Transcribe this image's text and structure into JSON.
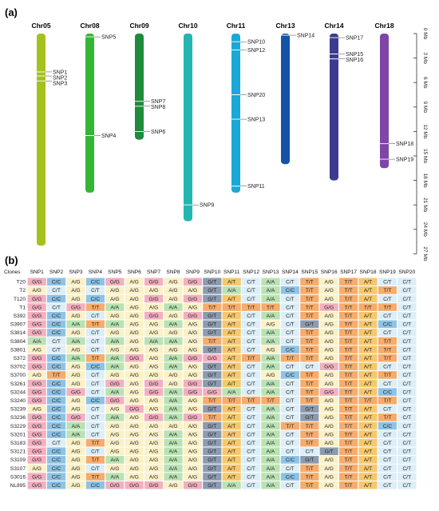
{
  "panel_a": {
    "label": "(a)",
    "scale_ticks": [
      "0 Mb",
      "3 Mb",
      "6 Mb",
      "9 Mb",
      "12 Mb",
      "15 Mb",
      "18 Mb",
      "21 Mb",
      "24 Mb",
      "27 Mb"
    ],
    "chromosomes": [
      {
        "name": "Chr05",
        "length_mb": 26.0,
        "color": "#a3c21c",
        "snps": [
          {
            "label": "SNP1",
            "pos_mb": 4.7
          },
          {
            "label": "SNP2",
            "pos_mb": 5.2
          },
          {
            "label": "SNP3",
            "pos_mb": 5.8
          }
        ]
      },
      {
        "name": "Chr08",
        "length_mb": 19.5,
        "color": "#35b535",
        "snps": [
          {
            "label": "SNP5",
            "pos_mb": 0.4
          },
          {
            "label": "SNP4",
            "pos_mb": 12.5
          }
        ]
      },
      {
        "name": "Chr09",
        "length_mb": 13.0,
        "color": "#1e8c3a",
        "snps": [
          {
            "label": "SNP7",
            "pos_mb": 8.3
          },
          {
            "label": "SNP8",
            "pos_mb": 8.9
          },
          {
            "label": "SNP6",
            "pos_mb": 12.0
          }
        ]
      },
      {
        "name": "Chr10",
        "length_mb": 23.0,
        "color": "#25b5b0",
        "snps": [
          {
            "label": "SNP9",
            "pos_mb": 21.0
          }
        ]
      },
      {
        "name": "Chr11",
        "length_mb": 19.5,
        "color": "#1aa8d6",
        "snps": [
          {
            "label": "SNP10",
            "pos_mb": 1.0
          },
          {
            "label": "SNP12",
            "pos_mb": 2.0
          },
          {
            "label": "SNP20",
            "pos_mb": 7.5
          },
          {
            "label": "SNP13",
            "pos_mb": 10.5
          },
          {
            "label": "SNP11",
            "pos_mb": 18.7
          }
        ]
      },
      {
        "name": "Chr13",
        "length_mb": 16.0,
        "color": "#1553a8",
        "snps": [
          {
            "label": "SNP14",
            "pos_mb": 0.2
          }
        ]
      },
      {
        "name": "Chr14",
        "length_mb": 18.0,
        "color": "#3b3b8f",
        "snps": [
          {
            "label": "SNP17",
            "pos_mb": 0.5
          },
          {
            "label": "SNP15",
            "pos_mb": 2.5
          },
          {
            "label": "SNP16",
            "pos_mb": 3.1
          }
        ]
      },
      {
        "name": "Chr18",
        "length_mb": 16.5,
        "color": "#7f45a8",
        "snps": [
          {
            "label": "SNP18",
            "pos_mb": 13.5
          },
          {
            "label": "SNP19",
            "pos_mb": 15.4
          }
        ]
      }
    ]
  },
  "panel_b": {
    "label": "(b)",
    "corner": "Clones",
    "columns": [
      "SNP1",
      "SNP2",
      "SNP3",
      "SNP4",
      "SNP5",
      "SNP6",
      "SNP7",
      "SNP8",
      "SNP9",
      "SNP10",
      "SNP11",
      "SNP12",
      "SNP13",
      "SNP14",
      "SNP15",
      "SNP16",
      "SNP17",
      "SNP18",
      "SNP19",
      "SNP20"
    ],
    "genotype_colors": {
      "G/G": "#f3b0c0",
      "C/C": "#8ec3e6",
      "A/G": "#fbf1c7",
      "C/T": "#dceef8",
      "T/T": "#f6ac6c",
      "A/A": "#b9e3b2",
      "G/T": "#8d9bb0",
      "A/T": "#f6c86d",
      "C/G": "#9bb2c9"
    },
    "rows": [
      {
        "clone": "T20",
        "genotypes": [
          "G/G",
          "C/C",
          "A/G",
          "C/C",
          "G/G",
          "A/G",
          "G/G",
          "A/G",
          "G/G",
          "G/T",
          "A/T",
          "C/T",
          "A/A",
          "C/T",
          "T/T",
          "A/G",
          "T/T",
          "A/T",
          "C/T",
          "C/T"
        ]
      },
      {
        "clone": "T2",
        "genotypes": [
          "A/G",
          "C/T",
          "A/G",
          "C/T",
          "A/G",
          "A/G",
          "A/G",
          "A/G",
          "A/G",
          "G/T",
          "A/A",
          "C/T",
          "A/A",
          "C/C",
          "T/T",
          "A/G",
          "T/T",
          "A/T",
          "T/T",
          "C/T"
        ]
      },
      {
        "clone": "T120",
        "genotypes": [
          "G/G",
          "C/C",
          "A/G",
          "C/C",
          "A/G",
          "A/G",
          "G/G",
          "A/G",
          "G/G",
          "G/T",
          "A/T",
          "C/T",
          "A/A",
          "C/T",
          "T/T",
          "A/G",
          "T/T",
          "A/T",
          "C/T",
          "C/T"
        ]
      },
      {
        "clone": "T1",
        "genotypes": [
          "G/G",
          "C/T",
          "G/G",
          "T/T",
          "A/A",
          "A/G",
          "A/G",
          "A/A",
          "A/G",
          "T/T",
          "T/T",
          "T/T",
          "T/T",
          "C/T",
          "T/T",
          "G/G",
          "T/T",
          "T/T",
          "T/T",
          "C/T"
        ]
      },
      {
        "clone": "S392",
        "genotypes": [
          "G/G",
          "C/C",
          "A/G",
          "C/T",
          "A/G",
          "A/G",
          "G/G",
          "A/G",
          "G/G",
          "G/T",
          "A/T",
          "C/T",
          "A/A",
          "C/T",
          "T/T",
          "A/G",
          "T/T",
          "A/T",
          "C/T",
          "C/T"
        ]
      },
      {
        "clone": "S3907",
        "genotypes": [
          "G/G",
          "C/C",
          "A/A",
          "T/T",
          "A/A",
          "A/G",
          "A/G",
          "A/A",
          "A/G",
          "G/T",
          "A/T",
          "C/T",
          "A/G",
          "C/T",
          "G/T",
          "A/G",
          "T/T",
          "A/T",
          "C/C",
          "C/T"
        ]
      },
      {
        "clone": "S3814",
        "genotypes": [
          "G/G",
          "C/C",
          "A/G",
          "C/T",
          "A/G",
          "A/G",
          "A/G",
          "A/G",
          "A/G",
          "G/T",
          "A/T",
          "C/T",
          "A/A",
          "C/T",
          "T/T",
          "A/G",
          "T/T",
          "A/T",
          "C/T",
          "C/T"
        ]
      },
      {
        "clone": "S3804",
        "genotypes": [
          "A/A",
          "C/T",
          "A/A",
          "C/T",
          "A/A",
          "A/G",
          "A/A",
          "A/A",
          "A/G",
          "T/T",
          "A/T",
          "C/T",
          "A/A",
          "C/T",
          "T/T",
          "A/G",
          "T/T",
          "A/T",
          "T/T",
          "C/T"
        ]
      },
      {
        "clone": "S3801",
        "genotypes": [
          "A/G",
          "C/T",
          "A/G",
          "C/T",
          "A/G",
          "A/G",
          "A/G",
          "A/G",
          "A/G",
          "G/T",
          "A/T",
          "C/T",
          "A/G",
          "C/C",
          "T/T",
          "A/G",
          "T/T",
          "A/T",
          "T/T",
          "C/T"
        ]
      },
      {
        "clone": "S372",
        "genotypes": [
          "G/G",
          "C/C",
          "A/A",
          "T/T",
          "A/A",
          "G/G",
          "A/G",
          "A/A",
          "G/G",
          "G/G",
          "A/T",
          "T/T",
          "A/A",
          "T/T",
          "T/T",
          "A/G",
          "T/T",
          "A/T",
          "T/T",
          "C/T"
        ]
      },
      {
        "clone": "S3702",
        "genotypes": [
          "G/G",
          "C/C",
          "A/G",
          "C/C",
          "A/A",
          "A/G",
          "A/G",
          "A/A",
          "A/G",
          "G/T",
          "A/T",
          "C/T",
          "A/A",
          "C/T",
          "C/T",
          "G/G",
          "T/T",
          "A/T",
          "C/T",
          "C/T"
        ]
      },
      {
        "clone": "S3700",
        "genotypes": [
          "A/G",
          "T/T",
          "A/G",
          "C/T",
          "A/G",
          "A/G",
          "A/G",
          "A/G",
          "A/G",
          "G/T",
          "A/T",
          "C/T",
          "A/G",
          "C/C",
          "T/T",
          "A/G",
          "T/T",
          "A/T",
          "T/T",
          "C/T"
        ]
      },
      {
        "clone": "S3261",
        "genotypes": [
          "G/G",
          "C/C",
          "A/G",
          "C/T",
          "G/G",
          "A/G",
          "G/G",
          "A/G",
          "G/G",
          "G/T",
          "A/T",
          "C/T",
          "A/A",
          "C/T",
          "T/T",
          "A/G",
          "T/T",
          "A/T",
          "C/T",
          "C/T"
        ]
      },
      {
        "clone": "S3244",
        "genotypes": [
          "G/G",
          "C/C",
          "G/G",
          "C/T",
          "A/A",
          "A/G",
          "G/G",
          "A/A",
          "G/G",
          "G/G",
          "A/A",
          "C/T",
          "A/A",
          "C/T",
          "T/T",
          "G/G",
          "T/T",
          "A/T",
          "C/C",
          "C/T"
        ]
      },
      {
        "clone": "S3240",
        "genotypes": [
          "G/G",
          "C/C",
          "A/G",
          "C/C",
          "G/G",
          "A/G",
          "A/G",
          "A/A",
          "A/G",
          "T/T",
          "T/T",
          "T/T",
          "T/T",
          "C/T",
          "T/T",
          "A/G",
          "T/T",
          "T/T",
          "T/T",
          "C/T"
        ]
      },
      {
        "clone": "S3239",
        "genotypes": [
          "A/G",
          "C/C",
          "A/G",
          "C/T",
          "A/G",
          "G/G",
          "A/G",
          "A/A",
          "A/G",
          "G/T",
          "A/T",
          "C/T",
          "A/A",
          "C/T",
          "G/T",
          "A/G",
          "T/T",
          "A/T",
          "C/T",
          "C/T"
        ]
      },
      {
        "clone": "S3236",
        "genotypes": [
          "G/G",
          "C/C",
          "G/G",
          "C/T",
          "A/A",
          "A/G",
          "G/G",
          "A/A",
          "G/G",
          "T/T",
          "A/T",
          "C/T",
          "A/A",
          "C/T",
          "G/T",
          "A/G",
          "T/T",
          "A/T",
          "T/T",
          "C/T"
        ]
      },
      {
        "clone": "S3229",
        "genotypes": [
          "G/G",
          "C/C",
          "A/A",
          "C/T",
          "A/G",
          "A/G",
          "A/G",
          "A/G",
          "A/G",
          "G/T",
          "A/T",
          "C/T",
          "A/A",
          "T/T",
          "T/T",
          "A/G",
          "T/T",
          "A/T",
          "C/C",
          "C/T"
        ]
      },
      {
        "clone": "S3201",
        "genotypes": [
          "G/G",
          "C/C",
          "A/A",
          "C/T",
          "A/G",
          "A/G",
          "A/G",
          "A/A",
          "A/G",
          "G/T",
          "A/T",
          "C/T",
          "A/A",
          "C/T",
          "T/T",
          "A/G",
          "T/T",
          "A/T",
          "C/T",
          "C/T"
        ]
      },
      {
        "clone": "S3183",
        "genotypes": [
          "G/G",
          "C/T",
          "A/G",
          "T/T",
          "A/G",
          "A/G",
          "A/G",
          "A/A",
          "A/G",
          "G/T",
          "A/T",
          "C/T",
          "A/A",
          "C/T",
          "T/T",
          "A/G",
          "T/T",
          "A/T",
          "C/T",
          "C/T"
        ]
      },
      {
        "clone": "S3121",
        "genotypes": [
          "G/G",
          "C/C",
          "A/G",
          "C/T",
          "A/G",
          "A/G",
          "A/G",
          "A/A",
          "A/G",
          "G/T",
          "A/T",
          "C/T",
          "A/A",
          "C/T",
          "C/T",
          "G/T",
          "T/T",
          "A/T",
          "C/T",
          "C/T"
        ]
      },
      {
        "clone": "S3109",
        "genotypes": [
          "G/G",
          "C/C",
          "A/G",
          "T/T",
          "A/A",
          "A/G",
          "A/G",
          "A/A",
          "A/G",
          "G/T",
          "A/T",
          "C/T",
          "A/A",
          "C/C",
          "G/T",
          "A/G",
          "T/T",
          "A/T",
          "C/T",
          "C/T"
        ]
      },
      {
        "clone": "S3107",
        "genotypes": [
          "A/G",
          "C/C",
          "A/G",
          "C/T",
          "A/G",
          "A/G",
          "A/G",
          "A/A",
          "A/G",
          "G/T",
          "A/T",
          "C/T",
          "A/A",
          "C/T",
          "T/T",
          "A/G",
          "T/T",
          "A/T",
          "C/T",
          "C/T"
        ]
      },
      {
        "clone": "S3016",
        "genotypes": [
          "G/G",
          "C/C",
          "A/G",
          "T/T",
          "A/A",
          "A/G",
          "A/G",
          "A/A",
          "A/G",
          "G/T",
          "A/T",
          "C/T",
          "A/A",
          "C/C",
          "T/T",
          "A/G",
          "T/T",
          "A/T",
          "C/T",
          "C/T"
        ]
      },
      {
        "clone": "NL895",
        "genotypes": [
          "G/G",
          "C/C",
          "A/G",
          "C/C",
          "G/G",
          "G/G",
          "G/G",
          "A/G",
          "G/G",
          "G/T",
          "A/A",
          "C/T",
          "A/A",
          "C/T",
          "T/T",
          "A/G",
          "T/T",
          "A/T",
          "C/T",
          "C/T"
        ]
      }
    ]
  }
}
